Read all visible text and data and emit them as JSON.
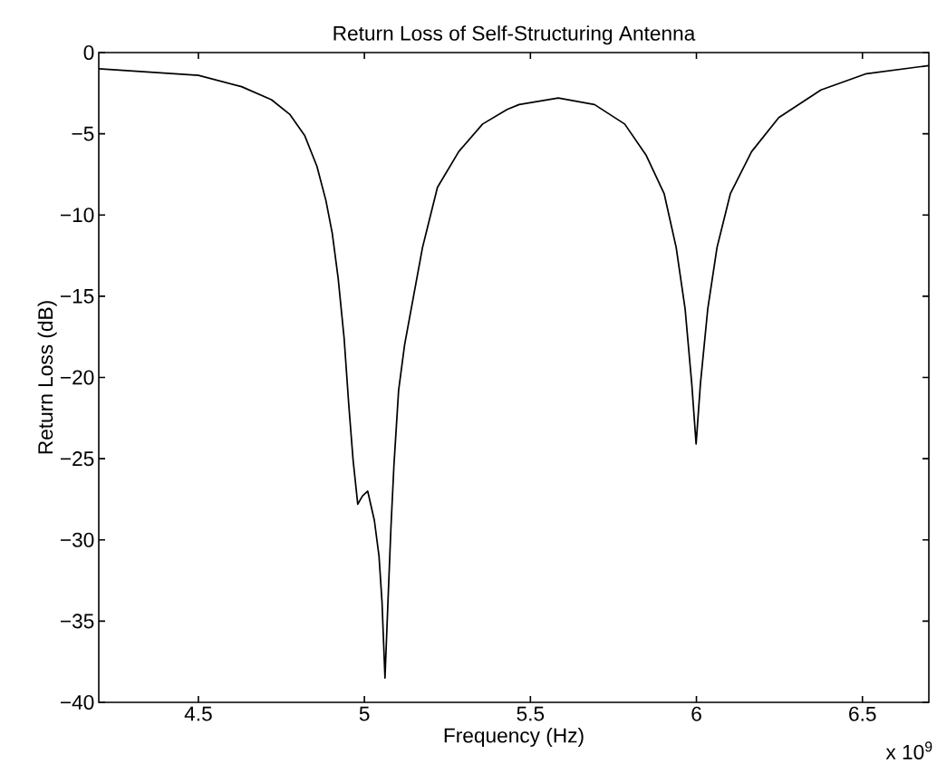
{
  "chart_data": {
    "type": "line",
    "title": "Return Loss of Self-Structuring Antenna",
    "xlabel": "Frequency (Hz)",
    "ylabel": "Return Loss (dB)",
    "annotations": [
      "x 10$^{9}$"
    ],
    "xlim": [
      4.2,
      6.7
    ],
    "xticks": [
      4.5,
      5,
      5.5,
      6,
      6.5
    ],
    "ylim": [
      -40,
      0
    ],
    "yticks": [
      {
        "value": -40,
        "label": "−40"
      },
      {
        "value": -35,
        "label": "−35"
      },
      {
        "value": -30,
        "label": "−30"
      },
      {
        "value": -25,
        "label": "−25"
      },
      {
        "value": -20,
        "label": "−20"
      },
      {
        "value": -15,
        "label": "−15"
      },
      {
        "value": -10,
        "label": "−10"
      },
      {
        "value": -5,
        "label": "−5"
      },
      {
        "value": 0,
        "label": "0"
      }
    ],
    "series": [
      {
        "color": "#000000",
        "x": [
          4.2,
          4.5,
          4.63,
          4.72,
          4.775,
          4.82,
          4.857,
          4.884,
          4.903,
          4.921,
          4.939,
          4.953,
          4.966,
          4.98,
          4.994,
          5.01,
          5.03,
          5.044,
          5.053,
          5.062,
          5.071,
          5.08,
          5.089,
          5.103,
          5.121,
          5.175,
          5.22,
          5.284,
          5.356,
          5.43,
          5.466,
          5.584,
          5.693,
          5.784,
          5.848,
          5.903,
          5.939,
          5.966,
          5.986,
          5.999,
          6.012,
          6.034,
          6.062,
          6.102,
          6.166,
          6.248,
          6.375,
          6.512,
          6.7
        ],
        "values": [
          -1.0,
          -1.4,
          -2.1,
          -2.9,
          -3.8,
          -5.1,
          -7.0,
          -9.1,
          -11.1,
          -13.9,
          -17.6,
          -21.7,
          -25.1,
          -27.8,
          -27.3,
          -27.0,
          -28.8,
          -31.0,
          -33.8,
          -38.5,
          -33.8,
          -29.2,
          -25.4,
          -20.8,
          -18.0,
          -12.0,
          -8.3,
          -6.1,
          -4.4,
          -3.5,
          -3.2,
          -2.8,
          -3.2,
          -4.4,
          -6.3,
          -8.7,
          -12.0,
          -15.8,
          -20.4,
          -24.1,
          -20.4,
          -15.8,
          -12.0,
          -8.7,
          -6.1,
          -4.0,
          -2.3,
          -1.3,
          -0.8
        ]
      }
    ],
    "marker": "none",
    "line_style": "solid"
  }
}
